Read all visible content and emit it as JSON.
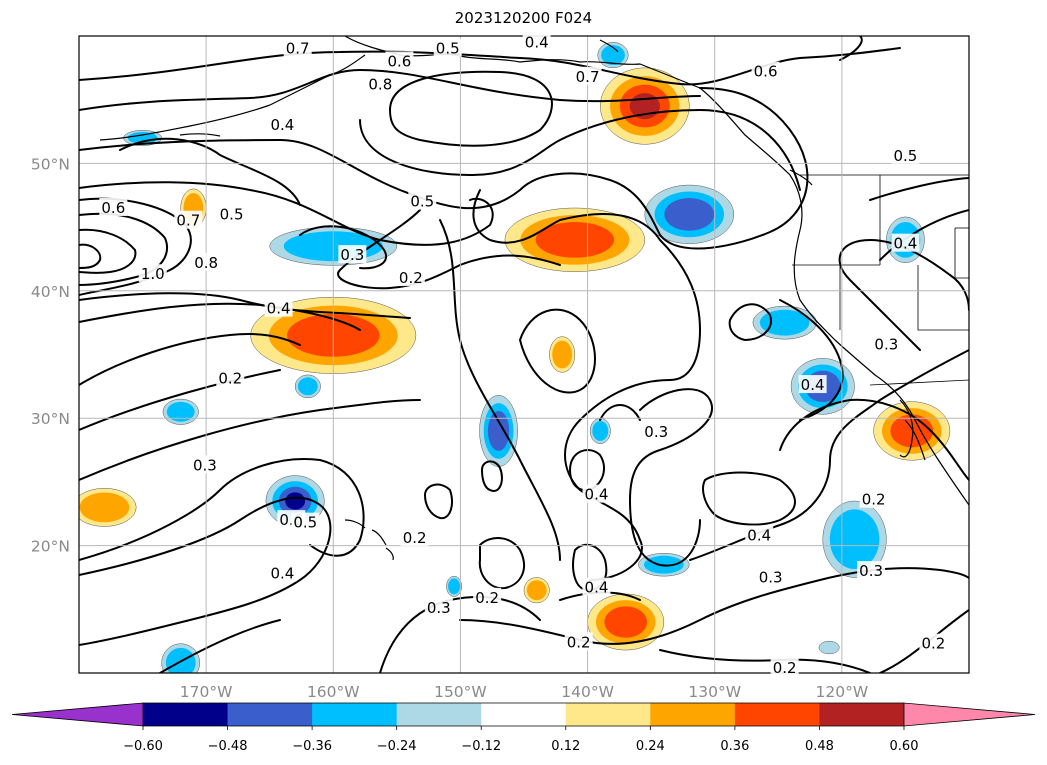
{
  "title": "2023120200 F024",
  "map": {
    "lon_range": [
      -180,
      -110
    ],
    "lat_range": [
      10,
      60
    ],
    "grid": true,
    "lon_labels": [
      {
        "lon": -170,
        "text": "170°W"
      },
      {
        "lon": -160,
        "text": "160°W"
      },
      {
        "lon": -150,
        "text": "150°W"
      },
      {
        "lon": -140,
        "text": "140°W"
      },
      {
        "lon": -130,
        "text": "130°W"
      },
      {
        "lon": -120,
        "text": "120°W"
      }
    ],
    "lat_labels": [
      {
        "lat": 20,
        "text": "20°N"
      },
      {
        "lat": 30,
        "text": "30°N"
      },
      {
        "lat": 40,
        "text": "40°N"
      },
      {
        "lat": 50,
        "text": "50°N"
      }
    ]
  },
  "colorbar": {
    "orientation": "horizontal",
    "extend": "both",
    "bins": [
      {
        "color": "#9932cc"
      },
      {
        "color": "#00008b"
      },
      {
        "color": "#3a5fcd"
      },
      {
        "color": "#00bfff"
      },
      {
        "color": "#add8e6"
      },
      {
        "color": "#ffffff"
      },
      {
        "color": "#ffe88a"
      },
      {
        "color": "#ffa500"
      },
      {
        "color": "#ff4500"
      },
      {
        "color": "#b22222"
      },
      {
        "color": "#ff88aa"
      }
    ],
    "ticks": [
      "−0.60",
      "−0.48",
      "−0.36",
      "−0.24",
      "−0.12",
      "0.12",
      "0.24",
      "0.36",
      "0.48",
      "0.60"
    ]
  },
  "shaded_areas": [
    {
      "lon": -135.5,
      "lat": 54.5,
      "rx": 3.5,
      "ry": 3,
      "value": 0.5
    },
    {
      "lon": -141,
      "lat": 44,
      "rx": 5.5,
      "ry": 2.5,
      "value": 0.48
    },
    {
      "lon": -160,
      "lat": 36.5,
      "rx": 6.5,
      "ry": 3,
      "value": 0.42
    },
    {
      "lon": -114.5,
      "lat": 29,
      "rx": 3,
      "ry": 2.3,
      "value": 0.45
    },
    {
      "lon": -137,
      "lat": 14,
      "rx": 3,
      "ry": 2.2,
      "value": 0.42
    },
    {
      "lon": -178,
      "lat": 23,
      "rx": 2.5,
      "ry": 1.5,
      "value": 0.32
    },
    {
      "lon": -171,
      "lat": 46.5,
      "rx": 1,
      "ry": 1.5,
      "value": 0.3
    },
    {
      "lon": -142,
      "lat": 35,
      "rx": 1,
      "ry": 1.4,
      "value": 0.28
    },
    {
      "lon": -144,
      "lat": 16.5,
      "rx": 1,
      "ry": 1,
      "value": 0.27
    },
    {
      "lon": -132,
      "lat": 46,
      "rx": 3.5,
      "ry": 2.3,
      "value": -0.45
    },
    {
      "lon": -163,
      "lat": 23.5,
      "rx": 2.3,
      "ry": 2,
      "value": -0.5
    },
    {
      "lon": -121.5,
      "lat": 32.5,
      "rx": 2.5,
      "ry": 2.2,
      "value": -0.42
    },
    {
      "lon": -147,
      "lat": 29,
      "rx": 1.5,
      "ry": 2.8,
      "value": -0.4
    },
    {
      "lon": -160,
      "lat": 43.5,
      "rx": 5,
      "ry": 1.5,
      "value": -0.33
    },
    {
      "lon": -119,
      "lat": 20.5,
      "rx": 2.5,
      "ry": 3,
      "value": -0.32
    },
    {
      "lon": -115,
      "lat": 44,
      "rx": 1.5,
      "ry": 1.8,
      "value": -0.3
    },
    {
      "lon": -124.5,
      "lat": 37.5,
      "rx": 2.5,
      "ry": 1.3,
      "value": -0.28
    },
    {
      "lon": -172,
      "lat": 10.8,
      "rx": 1.5,
      "ry": 1.5,
      "value": -0.3
    },
    {
      "lon": -175,
      "lat": 52,
      "rx": 1.5,
      "ry": 0.6,
      "value": -0.28
    },
    {
      "lon": -172,
      "lat": 30.5,
      "rx": 1.4,
      "ry": 1,
      "value": -0.27
    },
    {
      "lon": -162,
      "lat": 32.5,
      "rx": 1,
      "ry": 0.9,
      "value": -0.26
    },
    {
      "lon": -139,
      "lat": 29,
      "rx": 0.8,
      "ry": 1,
      "value": -0.25
    },
    {
      "lon": -134,
      "lat": 18.5,
      "rx": 2,
      "ry": 0.9,
      "value": -0.26
    },
    {
      "lon": -138,
      "lat": 58.5,
      "rx": 1.2,
      "ry": 1,
      "value": -0.25
    },
    {
      "lon": -150.5,
      "lat": 16.8,
      "rx": 0.6,
      "ry": 0.8,
      "value": -0.25
    },
    {
      "lon": -121,
      "lat": 12,
      "rx": 0.8,
      "ry": 0.5,
      "value": -0.22
    }
  ],
  "contour_labels": [
    {
      "lon": -162.8,
      "lat": 59,
      "text": "0.7"
    },
    {
      "lon": -151,
      "lat": 59,
      "text": "0.5"
    },
    {
      "lon": -144,
      "lat": 59.5,
      "text": "0.4"
    },
    {
      "lon": -154.8,
      "lat": 58,
      "text": "0.6"
    },
    {
      "lon": -140,
      "lat": 56.8,
      "text": "0.7"
    },
    {
      "lon": -156.3,
      "lat": 56.2,
      "text": "0.8"
    },
    {
      "lon": -126,
      "lat": 57.2,
      "text": "0.6"
    },
    {
      "lon": -164,
      "lat": 53,
      "text": "0.4"
    },
    {
      "lon": -115,
      "lat": 50.6,
      "text": "0.5"
    },
    {
      "lon": -177.3,
      "lat": 46.5,
      "text": "0.6"
    },
    {
      "lon": -171.4,
      "lat": 45.5,
      "text": "0.7"
    },
    {
      "lon": -168,
      "lat": 46,
      "text": "0.5"
    },
    {
      "lon": -153,
      "lat": 47,
      "text": "0.5"
    },
    {
      "lon": -158.5,
      "lat": 42.8,
      "text": "0.3"
    },
    {
      "lon": -170,
      "lat": 42.2,
      "text": "0.8"
    },
    {
      "lon": -174.2,
      "lat": 41.3,
      "text": "1.0"
    },
    {
      "lon": -153.9,
      "lat": 41,
      "text": "0.2"
    },
    {
      "lon": -115,
      "lat": 43.7,
      "text": "0.4"
    },
    {
      "lon": -164.3,
      "lat": 38.6,
      "text": "0.4"
    },
    {
      "lon": -116.5,
      "lat": 35.8,
      "text": "0.3"
    },
    {
      "lon": -122.3,
      "lat": 32.6,
      "text": "0.4"
    },
    {
      "lon": -168.1,
      "lat": 33.1,
      "text": "0.2"
    },
    {
      "lon": -134.6,
      "lat": 28.9,
      "text": "0.3"
    },
    {
      "lon": -170.1,
      "lat": 26.3,
      "text": "0.3"
    },
    {
      "lon": -139.3,
      "lat": 24,
      "text": "0.4"
    },
    {
      "lon": -117.5,
      "lat": 23.6,
      "text": "0.2"
    },
    {
      "lon": -163.3,
      "lat": 22,
      "text": "0.6"
    },
    {
      "lon": -162.2,
      "lat": 21.8,
      "text": "0.5"
    },
    {
      "lon": -126.5,
      "lat": 20.8,
      "text": "0.4"
    },
    {
      "lon": -153.6,
      "lat": 20.6,
      "text": "0.2"
    },
    {
      "lon": -164,
      "lat": 17.8,
      "text": "0.4"
    },
    {
      "lon": -125.6,
      "lat": 17.5,
      "text": "0.3"
    },
    {
      "lon": -117.7,
      "lat": 18,
      "text": "0.3"
    },
    {
      "lon": -139.3,
      "lat": 16.7,
      "text": "0.4"
    },
    {
      "lon": -147.9,
      "lat": 15.9,
      "text": "0.2"
    },
    {
      "lon": -151.7,
      "lat": 15.1,
      "text": "0.3"
    },
    {
      "lon": -140.7,
      "lat": 12.4,
      "text": "0.2"
    },
    {
      "lon": -124.5,
      "lat": 10.4,
      "text": "0.2"
    },
    {
      "lon": -112.8,
      "lat": 12.3,
      "text": "0.2"
    }
  ]
}
